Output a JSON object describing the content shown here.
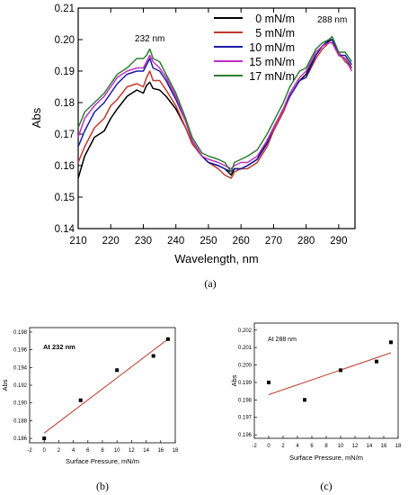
{
  "chart_data": [
    {
      "id": "a",
      "type": "line",
      "caption": "(a)",
      "xlabel": "Wavelength, nm",
      "ylabel": "Abs",
      "xlim": [
        210,
        295
      ],
      "ylim": [
        0.14,
        0.21
      ],
      "xticks": [
        210,
        220,
        230,
        240,
        250,
        260,
        270,
        280,
        290
      ],
      "yticks": [
        "0.14",
        "0.15",
        "0.16",
        "0.17",
        "0.18",
        "0.19",
        "0.20",
        "0.21"
      ],
      "annotations": [
        {
          "text": "232 nm",
          "x": 232,
          "y": 0.1995
        },
        {
          "text": "288 nm",
          "x": 288,
          "y": 0.2055
        }
      ],
      "legend_position": "top-right",
      "series": [
        {
          "name": "0 mN/m",
          "color": "#000000",
          "x": [
            210,
            212,
            215,
            218,
            220,
            222,
            225,
            228,
            230,
            231,
            232,
            233,
            235,
            237,
            240,
            243,
            245,
            248,
            250,
            253,
            255,
            257,
            258,
            260,
            262,
            265,
            268,
            270,
            273,
            275,
            278,
            280,
            283,
            285,
            287,
            288,
            290,
            292,
            294
          ],
          "y": [
            0.156,
            0.163,
            0.169,
            0.171,
            0.175,
            0.178,
            0.182,
            0.184,
            0.183,
            0.1855,
            0.1865,
            0.1845,
            0.184,
            0.182,
            0.178,
            0.172,
            0.167,
            0.163,
            0.161,
            0.16,
            0.159,
            0.157,
            0.159,
            0.159,
            0.16,
            0.162,
            0.168,
            0.172,
            0.178,
            0.182,
            0.187,
            0.189,
            0.195,
            0.198,
            0.1995,
            0.2,
            0.195,
            0.194,
            0.191
          ]
        },
        {
          "name": "5 mN/m",
          "color": "#c0392b",
          "x": [
            210,
            212,
            215,
            218,
            220,
            222,
            225,
            228,
            230,
            231,
            232,
            233,
            235,
            237,
            240,
            243,
            245,
            248,
            250,
            253,
            255,
            257,
            258,
            260,
            262,
            265,
            268,
            270,
            273,
            275,
            278,
            280,
            283,
            285,
            287,
            288,
            290,
            292,
            294
          ],
          "y": [
            0.161,
            0.166,
            0.172,
            0.175,
            0.179,
            0.181,
            0.185,
            0.186,
            0.185,
            0.188,
            0.19,
            0.187,
            0.187,
            0.184,
            0.179,
            0.172,
            0.167,
            0.163,
            0.161,
            0.159,
            0.157,
            0.156,
            0.158,
            0.159,
            0.159,
            0.161,
            0.166,
            0.171,
            0.177,
            0.182,
            0.187,
            0.188,
            0.194,
            0.197,
            0.199,
            0.199,
            0.196,
            0.193,
            0.191
          ]
        },
        {
          "name": "10 mN/m",
          "color": "#1a1aa8",
          "x": [
            210,
            212,
            215,
            218,
            220,
            222,
            225,
            228,
            230,
            231,
            232,
            233,
            235,
            237,
            240,
            243,
            245,
            248,
            250,
            253,
            255,
            257,
            258,
            260,
            262,
            265,
            268,
            270,
            273,
            275,
            278,
            280,
            283,
            285,
            287,
            288,
            290,
            292,
            294
          ],
          "y": [
            0.166,
            0.171,
            0.177,
            0.18,
            0.183,
            0.186,
            0.189,
            0.19,
            0.19,
            0.192,
            0.194,
            0.191,
            0.19,
            0.187,
            0.181,
            0.174,
            0.168,
            0.163,
            0.161,
            0.16,
            0.159,
            0.158,
            0.159,
            0.159,
            0.16,
            0.162,
            0.167,
            0.172,
            0.178,
            0.182,
            0.187,
            0.188,
            0.195,
            0.198,
            0.2,
            0.2,
            0.195,
            0.195,
            0.192
          ]
        },
        {
          "name": "15 mN/m",
          "color": "#c030c0",
          "x": [
            210,
            212,
            215,
            218,
            220,
            222,
            225,
            228,
            230,
            231,
            232,
            233,
            235,
            237,
            240,
            243,
            245,
            248,
            250,
            253,
            255,
            257,
            258,
            260,
            262,
            265,
            268,
            270,
            273,
            275,
            278,
            280,
            283,
            285,
            287,
            288,
            290,
            292,
            294
          ],
          "y": [
            0.169,
            0.175,
            0.179,
            0.182,
            0.185,
            0.188,
            0.19,
            0.191,
            0.191,
            0.193,
            0.195,
            0.193,
            0.191,
            0.188,
            0.182,
            0.174,
            0.168,
            0.163,
            0.162,
            0.161,
            0.16,
            0.159,
            0.16,
            0.161,
            0.161,
            0.163,
            0.168,
            0.172,
            0.178,
            0.183,
            0.188,
            0.19,
            0.196,
            0.198,
            0.199,
            0.199,
            0.195,
            0.194,
            0.19
          ]
        },
        {
          "name": "17 mN/m",
          "color": "#2e7d32",
          "x": [
            210,
            212,
            215,
            218,
            220,
            222,
            225,
            228,
            230,
            231,
            232,
            233,
            235,
            237,
            240,
            243,
            245,
            248,
            250,
            253,
            255,
            257,
            258,
            260,
            262,
            265,
            268,
            270,
            273,
            275,
            278,
            280,
            283,
            285,
            287,
            288,
            290,
            292,
            294
          ],
          "y": [
            0.172,
            0.177,
            0.18,
            0.183,
            0.186,
            0.189,
            0.191,
            0.194,
            0.194,
            0.195,
            0.197,
            0.194,
            0.193,
            0.189,
            0.183,
            0.175,
            0.169,
            0.164,
            0.163,
            0.162,
            0.161,
            0.158,
            0.161,
            0.162,
            0.163,
            0.165,
            0.17,
            0.174,
            0.18,
            0.185,
            0.19,
            0.191,
            0.197,
            0.199,
            0.2,
            0.201,
            0.196,
            0.196,
            0.193
          ]
        }
      ]
    },
    {
      "id": "b",
      "type": "scatter",
      "caption": "(b)",
      "xlabel": "Surface Pressure, mN/m",
      "ylabel": "Abs",
      "inset_label": "At 232 nm",
      "xlim": [
        -2,
        18
      ],
      "ylim": [
        0.1855,
        0.1985
      ],
      "xticks": [
        -2,
        0,
        2,
        4,
        6,
        8,
        10,
        12,
        14,
        16,
        18
      ],
      "yticks": [
        "0.186",
        "0.188",
        "0.190",
        "0.192",
        "0.194",
        "0.196",
        "0.198"
      ],
      "points": {
        "x": [
          0,
          5,
          10,
          15,
          17
        ],
        "y": [
          0.186,
          0.1903,
          0.1937,
          0.1953,
          0.1972
        ]
      },
      "fit": {
        "x": [
          0,
          17
        ],
        "y": [
          0.1866,
          0.1972
        ],
        "color": "#c0392b"
      }
    },
    {
      "id": "c",
      "type": "scatter",
      "caption": "(c)",
      "xlabel": "Surface Pressure, mN/m",
      "ylabel": "Abs",
      "inset_label": "At 288 nm",
      "xlim": [
        -2,
        18
      ],
      "ylim": [
        0.1958,
        0.2024
      ],
      "xticks": [
        -2,
        0,
        2,
        4,
        6,
        8,
        10,
        12,
        14,
        16,
        18
      ],
      "yticks": [
        "0.196",
        "0.197",
        "0.198",
        "0.199",
        "0.200",
        "0.201",
        "0.202"
      ],
      "points": {
        "x": [
          0,
          5,
          10,
          15,
          17
        ],
        "y": [
          0.199,
          0.198,
          0.1997,
          0.2002,
          0.2013
        ]
      },
      "fit": {
        "x": [
          0,
          17
        ],
        "y": [
          0.1983,
          0.2007
        ],
        "color": "#c0392b"
      }
    }
  ]
}
